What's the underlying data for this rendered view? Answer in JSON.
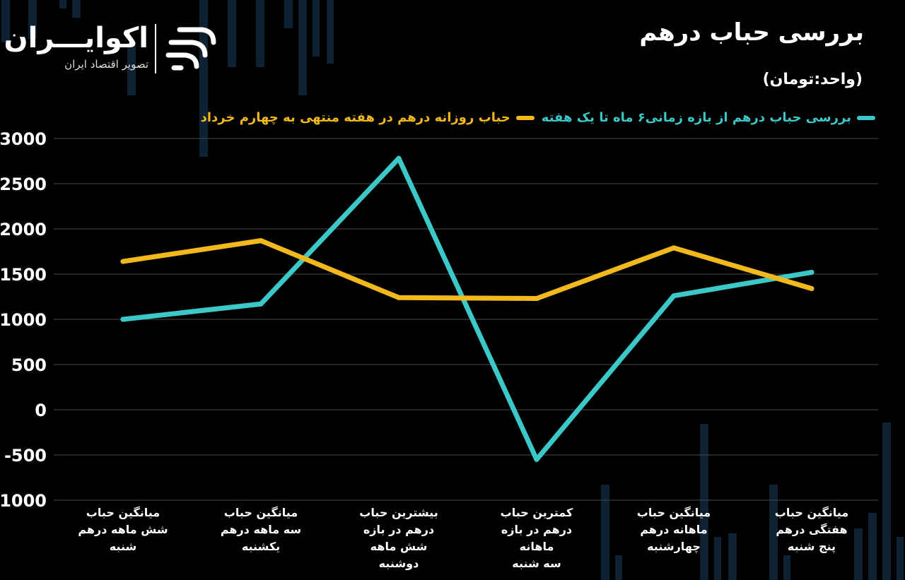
{
  "title": "بررسی حباب درهم",
  "unit_label": "(واحد:تومان)",
  "logo": {
    "name": "اکوایـــران",
    "tagline": "تصویر اقتصاد ایران"
  },
  "colors": {
    "background": "#000000",
    "teal": "#3CC8C8",
    "yellow": "#F2B91C",
    "grid": "#4a4a4a",
    "bg_bars": "#0f2233"
  },
  "chart_data": {
    "type": "line",
    "title": "بررسی حباب درهم",
    "ylabel": "(واحد:تومان)",
    "xlabel": "",
    "ylim": [
      -1000,
      3000
    ],
    "yticks": [
      "3000",
      "2500",
      "2000",
      "1500",
      "1000",
      "500",
      "0",
      "-500",
      "-1000"
    ],
    "ytick_values": [
      3000,
      2500,
      2000,
      1500,
      1000,
      500,
      0,
      -500,
      -1000
    ],
    "grid": true,
    "legend_position": "top",
    "categories": [
      "میانگین حباب شش ماهه درهم شنبه",
      "میانگین حباب سه ماهه درهم یکشنبه",
      "بیشترین حباب درهم در بازه شش ماهه دوشنبه",
      "کمترین حباب درهم در بازه ماهانه سه شنبه",
      "میانگین حباب ماهانه درهم چهارشنبه",
      "میانگین حباب هفتگی درهم پنج شنبه"
    ],
    "category_lines": [
      [
        "میانگین حباب",
        "شش ماهه درهم",
        "شنبه"
      ],
      [
        "میانگین حباب",
        "سه ماهه درهم",
        "یکشنبه"
      ],
      [
        "بیشترین حباب",
        "درهم در بازه",
        "شش ماهه",
        "دوشنبه"
      ],
      [
        "کمترین حباب",
        "درهم در بازه ماهانه",
        "سه شنبه"
      ],
      [
        "میانگین حباب",
        "ماهانه درهم",
        "چهارشنبه"
      ],
      [
        "میانگین حباب",
        "هفتگی درهم",
        "پنج شنبه"
      ]
    ],
    "series": [
      {
        "name": "بررسی حباب درهم  از بازه زمانی۶ ماه تا یک هفته",
        "color": "#3CC8C8",
        "values": [
          1000,
          1170,
          2780,
          -550,
          1260,
          1520
        ]
      },
      {
        "name": "حباب روزانه درهم در هفته منتهی به چهارم خرداد",
        "color": "#F2B91C",
        "values": [
          1640,
          1870,
          1240,
          1230,
          1790,
          1340
        ]
      }
    ]
  }
}
